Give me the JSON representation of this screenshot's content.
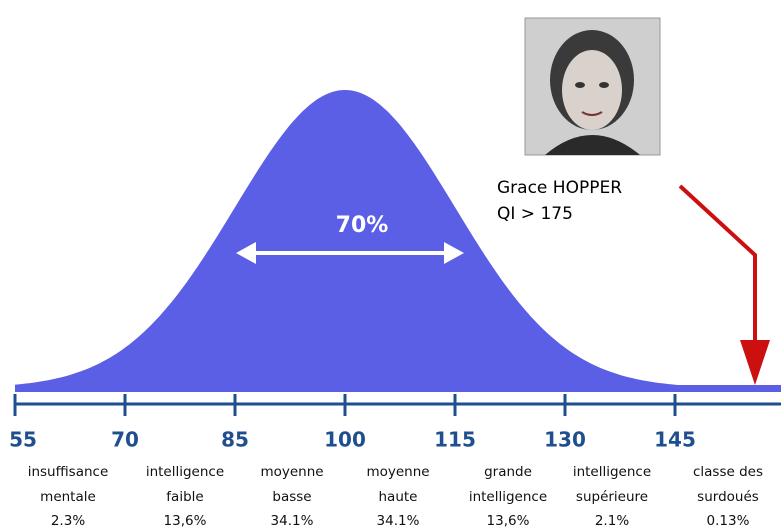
{
  "axis": {
    "ticks": [
      55,
      70,
      85,
      100,
      115,
      130,
      145
    ]
  },
  "center_label": "70%",
  "person": {
    "name": "Grace HOPPER",
    "iq": "QI > 175"
  },
  "bands": [
    {
      "lines": [
        "insuffisance",
        "mentale"
      ],
      "share": "2.3%"
    },
    {
      "lines": [
        "intelligence",
        "faible"
      ],
      "share": "13,6%"
    },
    {
      "lines": [
        "moyenne",
        "basse"
      ],
      "share": "34.1%"
    },
    {
      "lines": [
        "moyenne",
        "haute"
      ],
      "share": "34.1%"
    },
    {
      "lines": [
        "grande",
        "intelligence"
      ],
      "share": "13,6%"
    },
    {
      "lines": [
        "intelligence",
        "supérieure"
      ],
      "share": "2.1%"
    },
    {
      "lines": [
        "classe des",
        "surdoués"
      ],
      "share": "0.13%"
    }
  ]
}
